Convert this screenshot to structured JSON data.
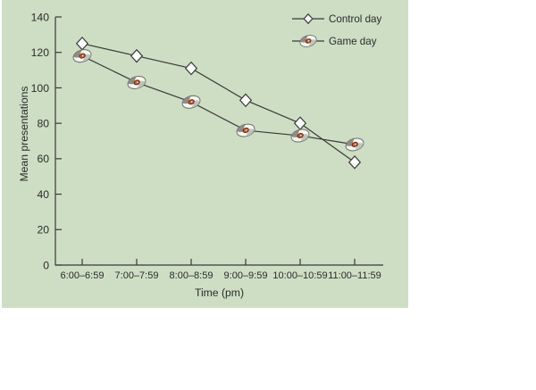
{
  "figure": {
    "background": "#ffffff",
    "panel_bg": "#cddec4",
    "axis_color": "#3a3a3a",
    "text_color": "#2b2b2b",
    "marker_fill": "#ffffff",
    "football_colors": {
      "body": "#f6f6f1",
      "outline": "#70706a",
      "shade_dark": "#8d8d86",
      "shade_light": "#c2c2ba",
      "center": "#c05229",
      "center_outline": "#5a220e",
      "center_inner": "#ecd9bf"
    }
  },
  "chart_data": {
    "type": "line",
    "title": "",
    "categories": [
      "6:00–6:59",
      "7:00–7:59",
      "8:00–8:59",
      "9:00–9:59",
      "10:00–10:59",
      "11:00–11:59"
    ],
    "series": [
      {
        "name": "Control day",
        "marker": "diamond",
        "values": [
          125,
          118,
          111,
          93,
          80,
          58
        ]
      },
      {
        "name": "Game day",
        "marker": "football",
        "values": [
          118,
          103,
          92,
          76,
          73,
          68
        ]
      }
    ],
    "xlabel": "Time (pm)",
    "ylabel": "Mean presentations",
    "ylim": [
      0,
      140
    ],
    "ytick_step": 20,
    "grid": false,
    "legend_position": "top-right"
  }
}
